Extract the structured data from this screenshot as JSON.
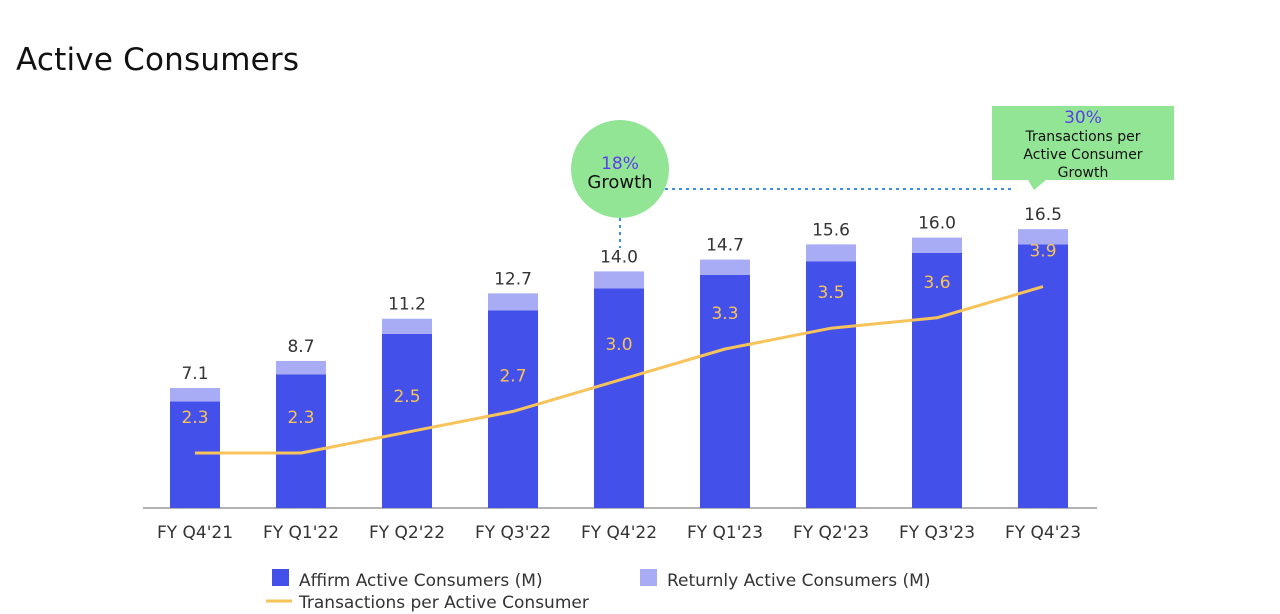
{
  "chart_data": {
    "type": "bar",
    "title": "Active Consumers",
    "stacked": true,
    "categories": [
      "FY Q4'21",
      "FY Q1'22",
      "FY Q2'22",
      "FY Q3'22",
      "FY Q4'22",
      "FY Q1'23",
      "FY Q2'23",
      "FY Q3'23",
      "FY Q4'23"
    ],
    "totals": [
      "7.1",
      "8.7",
      "11.2",
      "12.7",
      "14.0",
      "14.7",
      "15.6",
      "16.0",
      "16.5"
    ],
    "series": [
      {
        "name": "Affirm Active Consumers (M)",
        "color": "#4450ea",
        "values": [
          6.3,
          7.9,
          10.3,
          11.7,
          13.0,
          13.8,
          14.6,
          15.1,
          15.6
        ]
      },
      {
        "name": "Returnly Active Consumers (M)",
        "color": "#a8acf5",
        "values": [
          0.8,
          0.8,
          0.9,
          1.0,
          1.0,
          0.9,
          1.0,
          0.9,
          0.9
        ]
      }
    ],
    "line": {
      "name": "Transactions per Active Consumer",
      "color": "#f7c35a",
      "labels": [
        "2.3",
        "2.3",
        "2.5",
        "2.7",
        "3.0",
        "3.3",
        "3.5",
        "3.6",
        "3.9"
      ],
      "values": [
        2.3,
        2.3,
        2.5,
        2.7,
        3.0,
        3.3,
        3.5,
        3.6,
        3.9
      ]
    },
    "ylim": [
      0,
      17.5
    ],
    "grid": false,
    "legend_placement": "bottom",
    "annotations": [
      {
        "pct": "18%",
        "text": "Growth",
        "shape": "circle",
        "color": "#93e596"
      },
      {
        "pct": "30%",
        "text": [
          "Transactions per",
          "Active Consumer",
          "Growth"
        ],
        "shape": "callout",
        "color": "#93e596"
      }
    ],
    "annotation_pct_color": "#5b3ee8"
  }
}
